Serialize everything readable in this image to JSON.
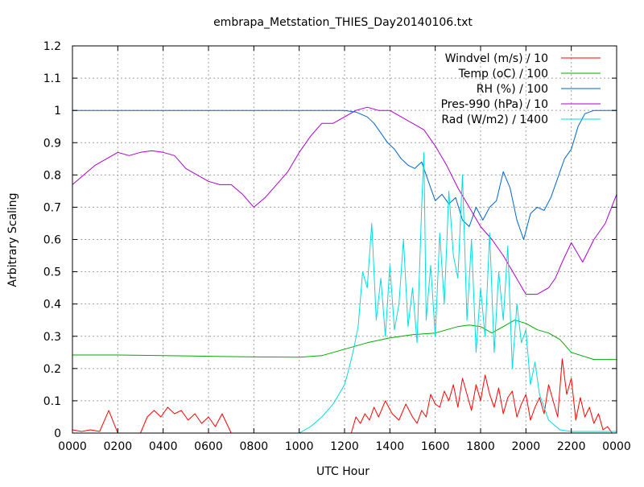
{
  "chart_data": {
    "type": "line",
    "title": "embrapa_Metstation_THIES_Day20140106.txt",
    "xlabel": "UTC Hour",
    "ylabel": "Arbitrary Scaling",
    "xlim": [
      0,
      2400
    ],
    "ylim": [
      0,
      1.2
    ],
    "x_ticks": [
      "0000",
      "0200",
      "0400",
      "0600",
      "0800",
      "1000",
      "1200",
      "1400",
      "1600",
      "1800",
      "2000",
      "2200",
      "0000"
    ],
    "y_ticks": [
      "0",
      "0.1",
      "0.2",
      "0.3",
      "0.4",
      "0.5",
      "0.6",
      "0.7",
      "0.8",
      "0.9",
      "1",
      "1.1",
      "1.2"
    ],
    "grid": true,
    "legend_position": "top-right",
    "series": [
      {
        "name": "Windvel (m/s) / 10",
        "color": "#ff0000",
        "x": [
          0,
          40,
          80,
          120,
          160,
          200,
          250,
          300,
          330,
          360,
          390,
          420,
          450,
          480,
          510,
          540,
          570,
          600,
          630,
          660,
          700,
          720,
          800,
          900,
          1000,
          1100,
          1200,
          1230,
          1250,
          1270,
          1290,
          1310,
          1330,
          1350,
          1380,
          1410,
          1440,
          1470,
          1500,
          1520,
          1540,
          1560,
          1580,
          1600,
          1620,
          1640,
          1660,
          1680,
          1700,
          1720,
          1740,
          1760,
          1780,
          1800,
          1820,
          1840,
          1860,
          1880,
          1900,
          1920,
          1940,
          1960,
          1980,
          2000,
          2020,
          2040,
          2060,
          2080,
          2100,
          2120,
          2140,
          2160,
          2180,
          2200,
          2220,
          2240,
          2260,
          2280,
          2300,
          2320,
          2340,
          2360,
          2380,
          2400
        ],
        "values": [
          0.01,
          0.005,
          0.01,
          0.005,
          0.07,
          0.0,
          0.0,
          0.0,
          0.05,
          0.07,
          0.05,
          0.08,
          0.06,
          0.07,
          0.04,
          0.06,
          0.03,
          0.05,
          0.02,
          0.06,
          0.0,
          0.0,
          0.0,
          0.0,
          0.0,
          0.0,
          0.0,
          0.0,
          0.05,
          0.03,
          0.06,
          0.04,
          0.08,
          0.05,
          0.1,
          0.06,
          0.04,
          0.09,
          0.05,
          0.03,
          0.07,
          0.05,
          0.12,
          0.09,
          0.08,
          0.13,
          0.1,
          0.15,
          0.08,
          0.17,
          0.12,
          0.07,
          0.15,
          0.1,
          0.18,
          0.12,
          0.08,
          0.14,
          0.06,
          0.11,
          0.13,
          0.05,
          0.09,
          0.12,
          0.04,
          0.08,
          0.11,
          0.06,
          0.15,
          0.1,
          0.05,
          0.23,
          0.12,
          0.17,
          0.04,
          0.11,
          0.05,
          0.08,
          0.03,
          0.06,
          0.01,
          0.02,
          0.0,
          0.0
        ]
      },
      {
        "name": "Temp (oC) / 100",
        "color": "#00aa00",
        "x": [
          0,
          200,
          400,
          600,
          800,
          1000,
          1100,
          1200,
          1300,
          1400,
          1500,
          1600,
          1700,
          1750,
          1800,
          1850,
          1900,
          1950,
          2000,
          2050,
          2100,
          2150,
          2200,
          2300,
          2400
        ],
        "values": [
          0.242,
          0.242,
          0.24,
          0.238,
          0.236,
          0.235,
          0.24,
          0.26,
          0.28,
          0.295,
          0.305,
          0.31,
          0.33,
          0.335,
          0.33,
          0.31,
          0.33,
          0.35,
          0.34,
          0.32,
          0.31,
          0.29,
          0.25,
          0.228,
          0.228
        ]
      },
      {
        "name": "RH (%) / 100",
        "color": "#0066cc",
        "x": [
          0,
          1200,
          1250,
          1300,
          1330,
          1360,
          1390,
          1420,
          1450,
          1480,
          1510,
          1540,
          1560,
          1580,
          1600,
          1630,
          1660,
          1690,
          1720,
          1750,
          1780,
          1810,
          1840,
          1870,
          1900,
          1930,
          1960,
          1990,
          2020,
          2050,
          2080,
          2110,
          2140,
          2170,
          2200,
          2230,
          2260,
          2300,
          2400
        ],
        "values": [
          1.0,
          1.0,
          0.995,
          0.98,
          0.96,
          0.93,
          0.9,
          0.88,
          0.85,
          0.83,
          0.82,
          0.84,
          0.8,
          0.76,
          0.72,
          0.74,
          0.71,
          0.73,
          0.66,
          0.64,
          0.7,
          0.66,
          0.7,
          0.72,
          0.81,
          0.76,
          0.66,
          0.6,
          0.68,
          0.7,
          0.69,
          0.73,
          0.79,
          0.85,
          0.88,
          0.95,
          0.99,
          1.0,
          1.0
        ]
      },
      {
        "name": "Pres-990 (hPa) / 10",
        "color": "#aa00cc",
        "x": [
          0,
          100,
          200,
          250,
          300,
          350,
          400,
          450,
          500,
          550,
          600,
          650,
          700,
          750,
          800,
          850,
          900,
          950,
          1000,
          1050,
          1100,
          1150,
          1200,
          1250,
          1300,
          1350,
          1400,
          1450,
          1500,
          1550,
          1600,
          1650,
          1700,
          1750,
          1800,
          1850,
          1900,
          1950,
          2000,
          2050,
          2100,
          2130,
          2160,
          2200,
          2250,
          2300,
          2350,
          2400
        ],
        "values": [
          0.77,
          0.83,
          0.87,
          0.86,
          0.87,
          0.875,
          0.87,
          0.86,
          0.82,
          0.8,
          0.78,
          0.77,
          0.77,
          0.74,
          0.7,
          0.73,
          0.77,
          0.81,
          0.87,
          0.92,
          0.96,
          0.96,
          0.98,
          1.0,
          1.01,
          1.0,
          1.0,
          0.98,
          0.96,
          0.94,
          0.89,
          0.83,
          0.76,
          0.7,
          0.64,
          0.6,
          0.55,
          0.49,
          0.43,
          0.43,
          0.45,
          0.48,
          0.53,
          0.59,
          0.53,
          0.6,
          0.65,
          0.74
        ]
      },
      {
        "name": "Rad (W/m2) / 1400",
        "color": "#00dddd",
        "x": [
          0,
          1000,
          1050,
          1100,
          1150,
          1200,
          1220,
          1240,
          1260,
          1280,
          1300,
          1320,
          1340,
          1360,
          1380,
          1400,
          1420,
          1440,
          1460,
          1480,
          1500,
          1520,
          1540,
          1550,
          1560,
          1580,
          1600,
          1620,
          1640,
          1660,
          1680,
          1700,
          1720,
          1740,
          1760,
          1780,
          1800,
          1820,
          1840,
          1860,
          1880,
          1900,
          1920,
          1940,
          1960,
          1980,
          2000,
          2020,
          2040,
          2060,
          2080,
          2100,
          2150,
          2200,
          2400
        ],
        "values": [
          0.0,
          0.0,
          0.02,
          0.05,
          0.09,
          0.15,
          0.2,
          0.26,
          0.33,
          0.5,
          0.45,
          0.65,
          0.35,
          0.48,
          0.3,
          0.52,
          0.32,
          0.4,
          0.6,
          0.33,
          0.45,
          0.28,
          0.7,
          0.87,
          0.35,
          0.52,
          0.3,
          0.62,
          0.4,
          0.75,
          0.55,
          0.48,
          0.8,
          0.35,
          0.6,
          0.25,
          0.45,
          0.3,
          0.62,
          0.25,
          0.5,
          0.35,
          0.58,
          0.2,
          0.4,
          0.28,
          0.32,
          0.15,
          0.22,
          0.12,
          0.08,
          0.04,
          0.01,
          0.005,
          0.005
        ]
      }
    ]
  }
}
